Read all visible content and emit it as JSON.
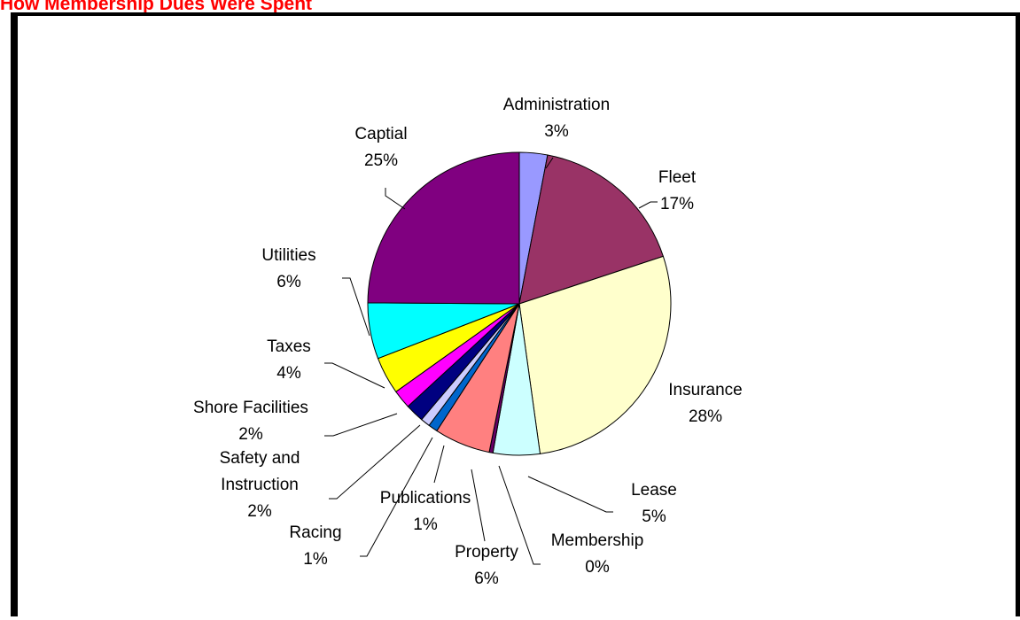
{
  "page_title": "How Membership Dues Were Spent",
  "title_color": "#ff0000",
  "chart_data": {
    "type": "pie",
    "start_angle_deg": 0,
    "direction": "clockwise",
    "slices": [
      {
        "label": "Administration",
        "pct_label": "3%",
        "value": 3,
        "color": "#9999ff"
      },
      {
        "label": "Fleet",
        "pct_label": "17%",
        "value": 17,
        "color": "#993366"
      },
      {
        "label": "Insurance",
        "pct_label": "28%",
        "value": 28,
        "color": "#ffffcc"
      },
      {
        "label": "Lease",
        "pct_label": "5%",
        "value": 5,
        "color": "#ccffff"
      },
      {
        "label": "Membership",
        "pct_label": "0%",
        "value": 0.4,
        "color": "#660066"
      },
      {
        "label": "Property",
        "pct_label": "6%",
        "value": 6,
        "color": "#ff8080"
      },
      {
        "label": "Publications",
        "pct_label": "1%",
        "value": 1,
        "color": "#0066cc"
      },
      {
        "label": "Racing",
        "pct_label": "1%",
        "value": 1,
        "color": "#ccccff"
      },
      {
        "label": "Safety and Instruction",
        "pct_label": "2%",
        "value": 2,
        "color": "#000080"
      },
      {
        "label": "Shore Facilities",
        "pct_label": "2%",
        "value": 2,
        "color": "#ff00ff"
      },
      {
        "label": "Taxes",
        "pct_label": "4%",
        "value": 4,
        "color": "#ffff00"
      },
      {
        "label": "Utilities",
        "pct_label": "6%",
        "value": 6,
        "color": "#00ffff"
      },
      {
        "label": "Captial",
        "pct_label": "25%",
        "value": 25,
        "color": "#800080"
      }
    ]
  }
}
